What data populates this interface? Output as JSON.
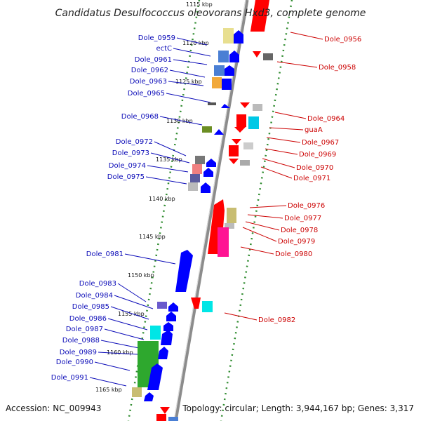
{
  "title": "Candidatus Desulfococcus oleovorans Hxd3, complete genome",
  "footer": {
    "accession": "Accession: NC_009943",
    "summary": "Topology: circular; Length: 3,944,167 bp; Genes: 3,317"
  },
  "colors": {
    "backbone": "#8c8c8c",
    "dotted_track": "#2e8b2e",
    "left_label": "#0b0bb8",
    "right_label": "#cc0000"
  },
  "ticks": [
    {
      "kbp": 1115,
      "label": "1115 kbp"
    },
    {
      "kbp": 1120,
      "label": "1120 kbp"
    },
    {
      "kbp": 1125,
      "label": "1125 kbp"
    },
    {
      "kbp": 1130,
      "label": "1130 kbp"
    },
    {
      "kbp": 1135,
      "label": "1135 kbp"
    },
    {
      "kbp": 1140,
      "label": "1140 kbp"
    },
    {
      "kbp": 1145,
      "label": "1145 kbp"
    },
    {
      "kbp": 1150,
      "label": "1150 kbp"
    },
    {
      "kbp": 1155,
      "label": "1155 kbp"
    },
    {
      "kbp": 1160,
      "label": "1160 kbp"
    },
    {
      "kbp": 1165,
      "label": "1165 kbp"
    }
  ],
  "left_genes": [
    {
      "label": "Dole_0959"
    },
    {
      "label": "ectC"
    },
    {
      "label": "Dole_0961"
    },
    {
      "label": "Dole_0962"
    },
    {
      "label": "Dole_0963"
    },
    {
      "label": "Dole_0965"
    },
    {
      "label": "Dole_0968"
    },
    {
      "label": "Dole_0972"
    },
    {
      "label": "Dole_0973"
    },
    {
      "label": "Dole_0974"
    },
    {
      "label": "Dole_0975"
    },
    {
      "label": "Dole_0981"
    },
    {
      "label": "Dole_0983"
    },
    {
      "label": "Dole_0984"
    },
    {
      "label": "Dole_0985"
    },
    {
      "label": "Dole_0986"
    },
    {
      "label": "Dole_0987"
    },
    {
      "label": "Dole_0988"
    },
    {
      "label": "Dole_0989"
    },
    {
      "label": "Dole_0990"
    },
    {
      "label": "Dole_0991"
    }
  ],
  "right_genes": [
    {
      "label": "Dole_0956"
    },
    {
      "label": "Dole_0958"
    },
    {
      "label": "Dole_0964"
    },
    {
      "label": "guaA"
    },
    {
      "label": "Dole_0967"
    },
    {
      "label": "Dole_0969"
    },
    {
      "label": "Dole_0970"
    },
    {
      "label": "Dole_0971"
    },
    {
      "label": "Dole_0976"
    },
    {
      "label": "Dole_0977"
    },
    {
      "label": "Dole_0978"
    },
    {
      "label": "Dole_0979"
    },
    {
      "label": "Dole_0980"
    },
    {
      "label": "Dole_0982"
    }
  ]
}
